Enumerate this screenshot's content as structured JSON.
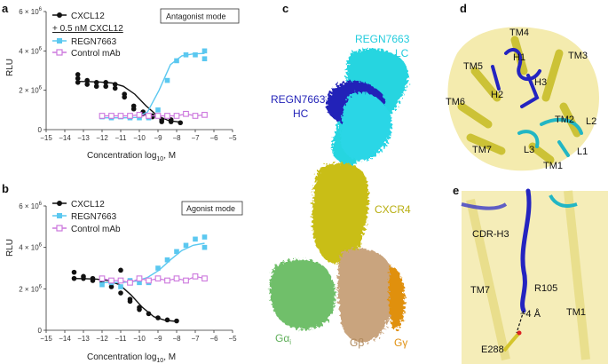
{
  "panels": {
    "a": {
      "letter": "a",
      "mode": "Antagonist mode",
      "ylabel": "RLU",
      "xlabel_main": "Concentration log",
      "xlabel_sub": "10",
      "xlabel_end": ", M",
      "ytick_labels": [
        "0",
        "2 × 10",
        "4 × 10",
        "6 × 10"
      ],
      "ytick_exp": "6",
      "xtick_labels": [
        "−15",
        "−14",
        "−13",
        "−12",
        "−11",
        "−10",
        "−9",
        "−8",
        "−7",
        "−6",
        "−5"
      ],
      "legend": [
        "CXCL12",
        "+ 0.5 nM CXCL12",
        "REGN7663",
        "Control mAb"
      ]
    },
    "b": {
      "letter": "b",
      "mode": "Agonist mode",
      "ylabel": "RLU",
      "xlabel_main": "Concentration log",
      "xlabel_sub": "10",
      "xlabel_end": ", M",
      "ytick_labels": [
        "0",
        "2 × 10",
        "4 × 10",
        "6 × 10"
      ],
      "ytick_exp": "6",
      "xtick_labels": [
        "−15",
        "−14",
        "−13",
        "−12",
        "−11",
        "−10",
        "−9",
        "−8",
        "−7",
        "−6",
        "−5"
      ],
      "legend": [
        "CXCL12",
        "REGN7663",
        "Control mAb"
      ]
    },
    "c": {
      "letter": "c",
      "labels": {
        "lc1": "REGN7663",
        "lc2": "LC",
        "hc1": "REGN7663",
        "hc2": "HC",
        "cxcr4": "CXCR4",
        "galpha": "Gα",
        "galpha_sub": "i",
        "gbeta": "Gβ",
        "ggamma": "Gγ"
      }
    },
    "d": {
      "letter": "d",
      "labels": [
        "TM4",
        "TM5",
        "H1",
        "TM3",
        "H2",
        "H3",
        "TM6",
        "TM2",
        "L2",
        "L3",
        "TM7",
        "TM1",
        "L1"
      ]
    },
    "e": {
      "letter": "e",
      "labels": [
        "CDR-H3",
        "R105",
        "TM7",
        "TM1",
        "~4 Å",
        "E288"
      ]
    }
  },
  "chart_data": [
    {
      "type": "scatter",
      "panel": "a",
      "xlabel": "Concentration log10, M",
      "ylabel": "RLU",
      "xlim": [
        -15,
        -5
      ],
      "ylim": [
        0,
        6000000
      ],
      "series": [
        {
          "name": "CXCL12",
          "color": "#111111",
          "marker": "circle",
          "x": [
            -13.3,
            -13.3,
            -13.3,
            -12.8,
            -12.8,
            -12.3,
            -12.3,
            -11.8,
            -11.8,
            -11.3,
            -11.3,
            -10.8,
            -10.8,
            -10.3,
            -10.3,
            -9.8,
            -9.8,
            -9.3,
            -9.3,
            -8.8,
            -8.8,
            -8.3,
            -8.3,
            -7.8
          ],
          "y": [
            2800000,
            2600000,
            2400000,
            2500000,
            2300000,
            2400000,
            2200000,
            2400000,
            2200000,
            2300000,
            2100000,
            1800000,
            1650000,
            1200000,
            1050000,
            900000,
            800000,
            700000,
            650000,
            500000,
            400000,
            500000,
            400000,
            350000
          ],
          "fit_y": [
            2450000,
            2440000,
            2420000,
            2370000,
            2200000,
            1800000,
            1200000,
            700000,
            450000,
            380000
          ]
        },
        {
          "name": "REGN7663",
          "color": "#5BC8F0",
          "marker": "square",
          "x": [
            -12,
            -11.5,
            -11,
            -10.5,
            -10,
            -9.5,
            -9,
            -8.5,
            -8,
            -7.5,
            -7,
            -6.5,
            -6.5
          ],
          "y": [
            650000,
            600000,
            650000,
            600000,
            600000,
            600000,
            1000000,
            2500000,
            3500000,
            3800000,
            3800000,
            4000000,
            3600000
          ],
          "fit_y": [
            600000,
            600000,
            600000,
            620000,
            900000,
            2000000,
            3300000,
            3750000,
            3850000,
            3870000
          ]
        },
        {
          "name": "Control mAb",
          "color": "#CC77DD",
          "marker": "open-square",
          "x": [
            -12,
            -11.5,
            -11,
            -10.5,
            -10,
            -9.5,
            -9,
            -8.5,
            -8,
            -7.5,
            -7,
            -6.5
          ],
          "y": [
            700000,
            700000,
            700000,
            700000,
            750000,
            700000,
            700000,
            700000,
            700000,
            800000,
            700000,
            750000
          ]
        }
      ]
    },
    {
      "type": "scatter",
      "panel": "b",
      "xlabel": "Concentration log10, M",
      "ylabel": "RLU",
      "xlim": [
        -15,
        -5
      ],
      "ylim": [
        0,
        6000000
      ],
      "series": [
        {
          "name": "CXCL12",
          "color": "#111111",
          "marker": "circle",
          "x": [
            -13.5,
            -13.5,
            -13,
            -13,
            -12.5,
            -12.5,
            -12,
            -12,
            -11.5,
            -11.5,
            -11,
            -11,
            -10.5,
            -10.5,
            -10,
            -10,
            -9.5,
            -9,
            -8.5,
            -8
          ],
          "y": [
            2800000,
            2500000,
            2600000,
            2500000,
            2500000,
            2400000,
            2400000,
            2300000,
            2300000,
            2100000,
            2900000,
            1800000,
            1500000,
            1400000,
            1100000,
            1000000,
            800000,
            600000,
            500000,
            450000
          ],
          "fit_y": [
            2500000,
            2490000,
            2470000,
            2400000,
            2200000,
            1700000,
            1100000,
            650000,
            480000,
            430000
          ]
        },
        {
          "name": "REGN7663",
          "color": "#5BC8F0",
          "marker": "square",
          "x": [
            -12,
            -11.5,
            -11,
            -10.5,
            -10,
            -9.5,
            -9,
            -8.5,
            -8,
            -7.5,
            -7,
            -6.5,
            -6.5
          ],
          "y": [
            2200000,
            2300000,
            2100000,
            2400000,
            2300000,
            2300000,
            3000000,
            3400000,
            3800000,
            4100000,
            4400000,
            4500000,
            4000000
          ],
          "fit_y": [
            2300000,
            2300000,
            2320000,
            2380000,
            2550000,
            2900000,
            3400000,
            3850000,
            4100000,
            4200000
          ]
        },
        {
          "name": "Control mAb",
          "color": "#CC77DD",
          "marker": "open-square",
          "x": [
            -12,
            -11.5,
            -11,
            -10.5,
            -10,
            -9.5,
            -9,
            -8.5,
            -8,
            -7.5,
            -7,
            -6.5
          ],
          "y": [
            2500000,
            2400000,
            2400000,
            2300000,
            2500000,
            2400000,
            2500000,
            2400000,
            2500000,
            2400000,
            2600000,
            2500000
          ]
        }
      ]
    }
  ]
}
